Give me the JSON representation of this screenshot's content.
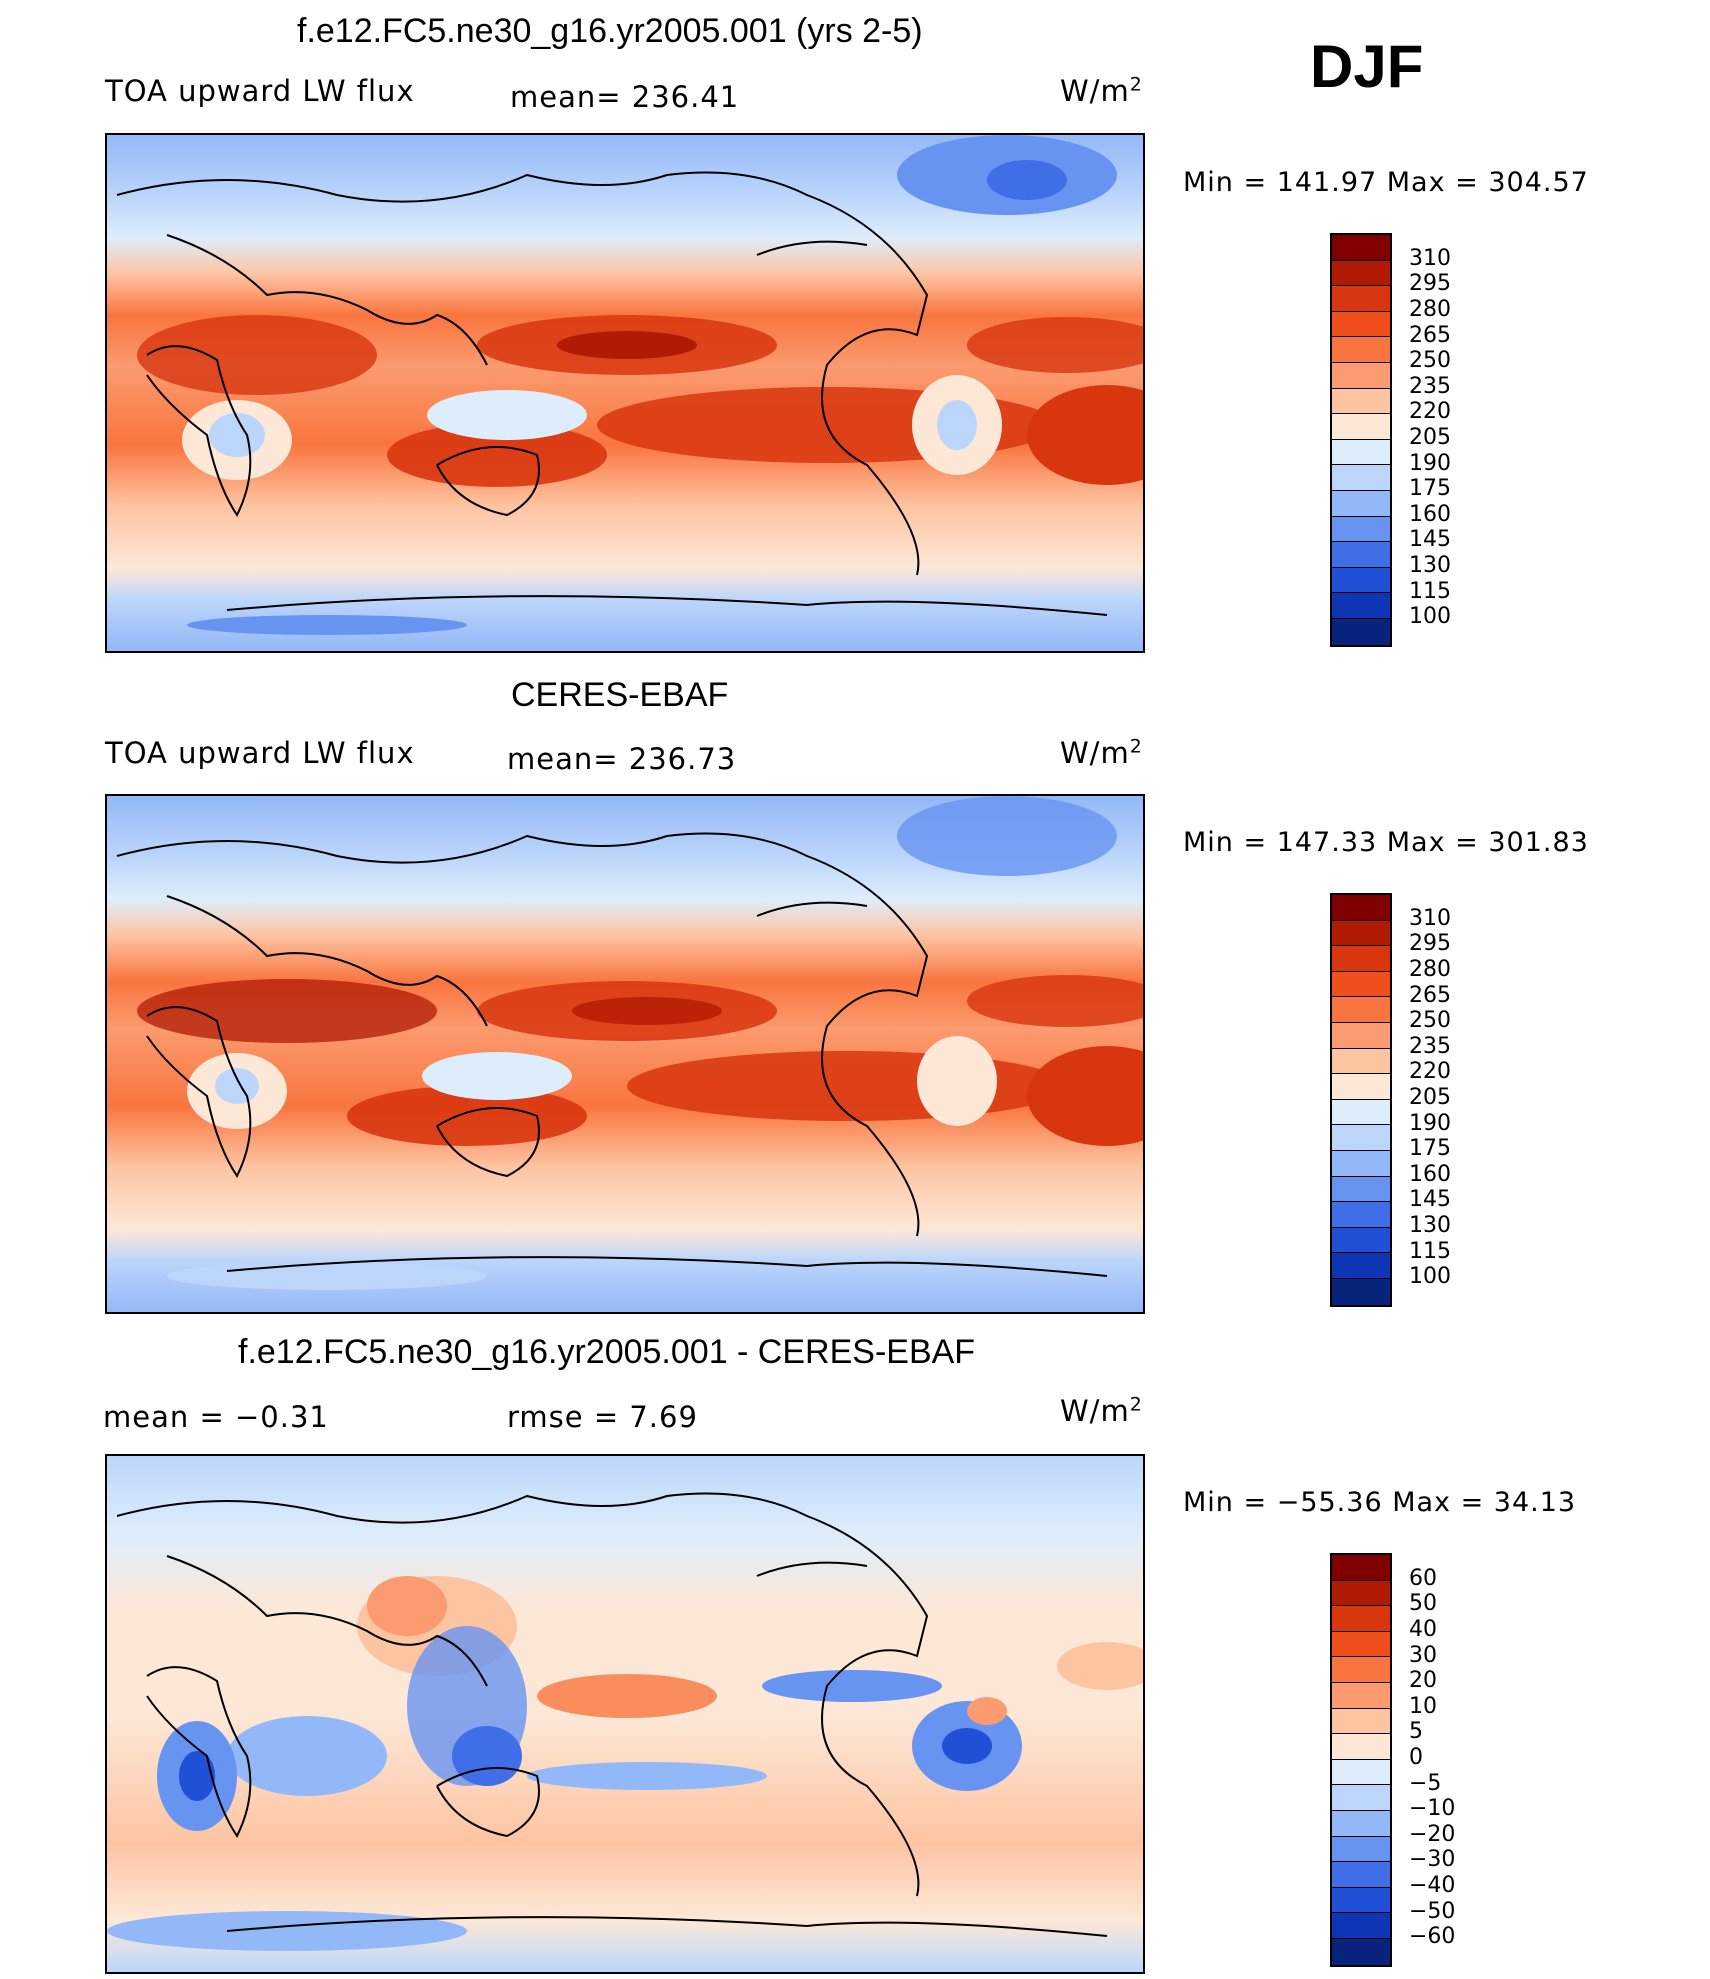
{
  "season": "DJF",
  "panels": [
    {
      "title": "f.e12.FC5.ne30_g16.yr2005.001 (yrs 2-5)",
      "left_label": "TOA upward LW flux",
      "center_label": "mean= 236.41",
      "units": "W/m",
      "units_sup": "2",
      "minmax": "Min  =  141.97  Max  =  304.57"
    },
    {
      "title": "CERES-EBAF",
      "left_label": "TOA upward LW flux",
      "center_label": "mean= 236.73",
      "units": "W/m",
      "units_sup": "2",
      "minmax": "Min  =  147.33  Max  =  301.83"
    },
    {
      "title": "f.e12.FC5.ne30_g16.yr2005.001 - CERES-EBAF",
      "left_label": "mean  =    −0.31",
      "center_label": "rmse  =     7.69",
      "units": "W/m",
      "units_sup": "2",
      "minmax": "Min  =  −55.36  Max  =    34.13"
    }
  ],
  "legend_abs": {
    "labels": [
      "310",
      "295",
      "280",
      "265",
      "250",
      "235",
      "220",
      "205",
      "190",
      "175",
      "160",
      "145",
      "130",
      "115",
      "100"
    ],
    "colors": [
      "#800000",
      "#b11a04",
      "#d8360f",
      "#f04e1a",
      "#f9753f",
      "#fb9b6f",
      "#fdc4a2",
      "#fde8d8",
      "#deedfb",
      "#bcd6fb",
      "#93b8f8",
      "#6894f1",
      "#3f6ee6",
      "#2050d6",
      "#0d35b4",
      "#08237c"
    ]
  },
  "legend_diff": {
    "labels": [
      "60",
      "50",
      "40",
      "30",
      "20",
      "10",
      "5",
      "0",
      "−5",
      "−10",
      "−20",
      "−30",
      "−40",
      "−50",
      "−60"
    ],
    "colors": [
      "#800000",
      "#b11a04",
      "#d8360f",
      "#f04e1a",
      "#f9753f",
      "#fb9b6f",
      "#fdc4a2",
      "#fde8d8",
      "#deedfb",
      "#bcd6fb",
      "#93b8f8",
      "#6894f1",
      "#3f6ee6",
      "#2050d6",
      "#0d35b4",
      "#08237c"
    ]
  },
  "chart_data": [
    {
      "type": "heatmap",
      "title": "f.e12.FC5.ne30_g16.yr2005.001 (yrs 2-5)",
      "variable": "TOA upward LW flux",
      "units": "W/m2",
      "mean": 236.41,
      "min": 141.97,
      "max": 304.57,
      "levels": [
        100,
        115,
        130,
        145,
        160,
        175,
        190,
        205,
        220,
        235,
        250,
        265,
        280,
        295,
        310
      ]
    },
    {
      "type": "heatmap",
      "title": "CERES-EBAF",
      "variable": "TOA upward LW flux",
      "units": "W/m2",
      "mean": 236.73,
      "min": 147.33,
      "max": 301.83,
      "levels": [
        100,
        115,
        130,
        145,
        160,
        175,
        190,
        205,
        220,
        235,
        250,
        265,
        280,
        295,
        310
      ]
    },
    {
      "type": "heatmap",
      "title": "f.e12.FC5.ne30_g16.yr2005.001 - CERES-EBAF",
      "units": "W/m2",
      "mean": -0.31,
      "rmse": 7.69,
      "min": -55.36,
      "max": 34.13,
      "levels": [
        -60,
        -50,
        -40,
        -30,
        -20,
        -10,
        -5,
        0,
        5,
        10,
        20,
        30,
        40,
        50,
        60
      ]
    }
  ]
}
